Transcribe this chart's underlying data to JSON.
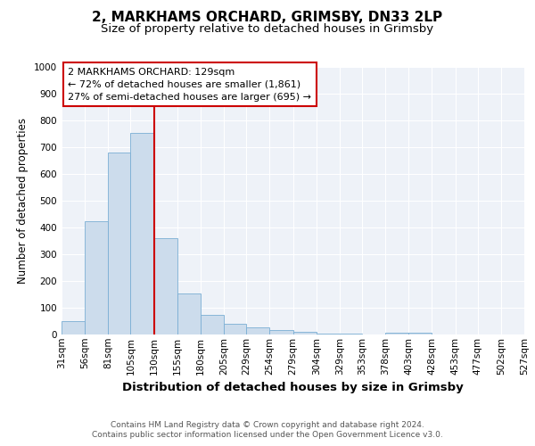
{
  "title": "2, MARKHAMS ORCHARD, GRIMSBY, DN33 2LP",
  "subtitle": "Size of property relative to detached houses in Grimsby",
  "xlabel": "Distribution of detached houses by size in Grimsby",
  "ylabel": "Number of detached properties",
  "bin_edges": [
    31,
    56,
    81,
    105,
    130,
    155,
    180,
    205,
    229,
    254,
    279,
    304,
    329,
    353,
    378,
    403,
    428,
    453,
    477,
    502,
    527
  ],
  "bar_heights": [
    50,
    425,
    680,
    755,
    360,
    155,
    75,
    40,
    27,
    17,
    10,
    5,
    3,
    0,
    8,
    8,
    0,
    0,
    0,
    0
  ],
  "bar_color": "#ccdcec",
  "bar_edge_color": "#7aaed4",
  "property_line_x": 130,
  "property_line_color": "#cc0000",
  "annotation_line1": "2 MARKHAMS ORCHARD: 129sqm",
  "annotation_line2": "← 72% of detached houses are smaller (1,861)",
  "annotation_line3": "27% of semi-detached houses are larger (695) →",
  "annotation_box_color": "#cc0000",
  "ylim": [
    0,
    1000
  ],
  "yticks": [
    0,
    100,
    200,
    300,
    400,
    500,
    600,
    700,
    800,
    900,
    1000
  ],
  "background_color": "#eef2f8",
  "grid_color": "#ffffff",
  "footer_text": "Contains HM Land Registry data © Crown copyright and database right 2024.\nContains public sector information licensed under the Open Government Licence v3.0.",
  "title_fontsize": 11,
  "subtitle_fontsize": 9.5,
  "xlabel_fontsize": 9.5,
  "ylabel_fontsize": 8.5,
  "tick_fontsize": 7.5,
  "annotation_fontsize": 8,
  "footer_fontsize": 6.5
}
